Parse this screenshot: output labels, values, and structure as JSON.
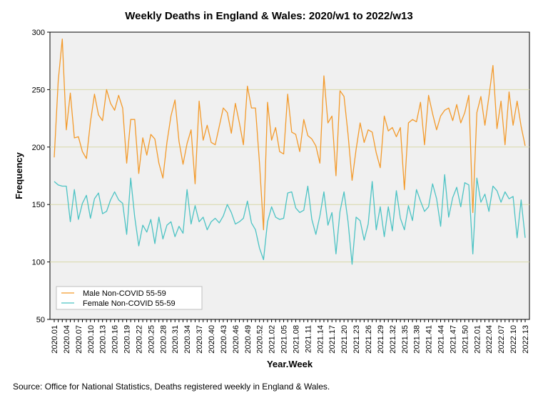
{
  "chart_data": {
    "type": "line",
    "title": "Weekly Deaths in England & Wales: 2020/w1 to 2022/w13",
    "xlabel": "Year.Week",
    "ylabel": "Frequency",
    "ylim": [
      50,
      300
    ],
    "yticks": [
      50,
      100,
      150,
      200,
      250,
      300
    ],
    "grid_lines": [
      100,
      150,
      200,
      250
    ],
    "xtick_labels": [
      "2020.01",
      "2020.04",
      "2020.07",
      "2020.10",
      "2020.13",
      "2020.16",
      "2020.19",
      "2020.22",
      "2020.25",
      "2020.28",
      "2020.31",
      "2020.34",
      "2020.37",
      "2020.40",
      "2020.43",
      "2020.46",
      "2020.49",
      "2020.52",
      "2021.02",
      "2021.05",
      "2021.08",
      "2021.11",
      "2021.14",
      "2021.17",
      "2021.20",
      "2021.23",
      "2021.26",
      "2021.29",
      "2021.32",
      "2021.35",
      "2021.38",
      "2021.41",
      "2021.44",
      "2021.47",
      "2021.50",
      "2022.01",
      "2022.04",
      "2022.07",
      "2022.10",
      "2022.13"
    ],
    "xtick_every": 3,
    "legend_position": "bottom-left",
    "series": [
      {
        "name": "Male Non-COVID 55-59",
        "color": "#f39a2b",
        "values": [
          191,
          258,
          294,
          215,
          247,
          208,
          209,
          196,
          190,
          222,
          246,
          228,
          223,
          250,
          238,
          232,
          245,
          234,
          186,
          224,
          224,
          177,
          208,
          193,
          211,
          207,
          186,
          173,
          204,
          227,
          241,
          205,
          185,
          203,
          215,
          168,
          240,
          206,
          219,
          204,
          202,
          218,
          234,
          230,
          212,
          238,
          221,
          202,
          253,
          234,
          234,
          186,
          128,
          239,
          206,
          217,
          196,
          194,
          246,
          213,
          211,
          196,
          224,
          210,
          207,
          201,
          186,
          262,
          221,
          227,
          175,
          249,
          244,
          211,
          171,
          198,
          221,
          204,
          215,
          213,
          195,
          182,
          227,
          214,
          217,
          209,
          217,
          163,
          221,
          224,
          222,
          239,
          202,
          245,
          229,
          215,
          227,
          232,
          234,
          223,
          237,
          221,
          230,
          245,
          143,
          230,
          244,
          219,
          244,
          271,
          216,
          240,
          202,
          248,
          219,
          240,
          218,
          201
        ],
        "colorName": "orange"
      },
      {
        "name": "Female Non-COVID 55-59",
        "color": "#4cc3c4",
        "values": [
          170,
          167,
          166,
          166,
          135,
          163,
          137,
          151,
          158,
          138,
          155,
          160,
          142,
          144,
          154,
          161,
          154,
          151,
          124,
          173,
          139,
          114,
          132,
          126,
          137,
          116,
          139,
          120,
          132,
          135,
          122,
          131,
          125,
          163,
          133,
          149,
          135,
          139,
          128,
          135,
          138,
          134,
          140,
          150,
          143,
          133,
          135,
          138,
          153,
          134,
          128,
          112,
          102,
          135,
          148,
          139,
          137,
          138,
          160,
          161,
          147,
          143,
          145,
          166,
          137,
          124,
          140,
          161,
          132,
          143,
          107,
          144,
          161,
          135,
          98,
          139,
          136,
          119,
          133,
          170,
          128,
          148,
          122,
          148,
          127,
          162,
          138,
          128,
          149,
          136,
          163,
          153,
          144,
          148,
          168,
          155,
          131,
          176,
          139,
          156,
          165,
          148,
          169,
          167,
          107,
          173,
          152,
          159,
          144,
          166,
          162,
          152,
          161,
          155,
          157,
          121,
          154,
          121
        ],
        "colorName": "teal"
      }
    ]
  },
  "source_note": "Source: Office for National Statistics, Deaths registered weekly in England & Wales."
}
